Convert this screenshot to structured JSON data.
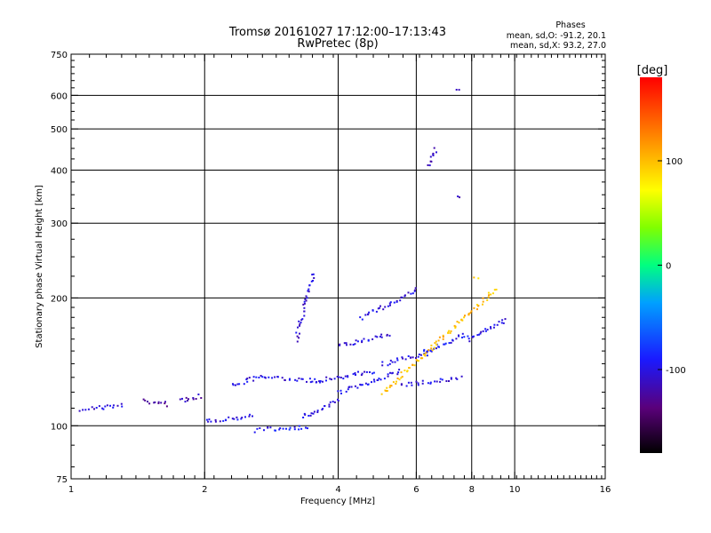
{
  "chart_data": {
    "type": "scatter",
    "title": "Tromsø 20161027 17:12:00–17:13:43",
    "subtitle": "RwPretec (8p)",
    "xlabel": "Frequency [MHz]",
    "ylabel": "Stationary phase Virtual Height [km]",
    "x_scale": "log",
    "y_scale": "log",
    "xlim": [
      1,
      16
    ],
    "ylim": [
      75,
      750
    ],
    "x_ticks": [
      1,
      2,
      4,
      6,
      8,
      10,
      16
    ],
    "y_ticks": [
      75,
      100,
      200,
      300,
      400,
      500,
      600,
      750
    ],
    "x_grid": [
      2,
      4,
      6,
      8,
      10
    ],
    "y_grid": [
      100,
      200,
      300,
      400,
      500,
      600
    ],
    "grid": true,
    "stats": {
      "heading": "Phases",
      "line1": "mean, sd,O:  -91.2, 20.1",
      "line2": "mean, sd,X:  93.2, 27.0"
    },
    "colorbar": {
      "label": "[deg]",
      "range": [
        -180,
        180
      ],
      "ticks": [
        100,
        0,
        -100
      ],
      "tick_labels": [
        "100",
        "0",
        "-100"
      ],
      "colormap": "rainbow"
    },
    "traces": [
      {
        "f": [
          1.05,
          1.3
        ],
        "h": [
          110,
          112
        ],
        "phase": -105
      },
      {
        "f": [
          1.45,
          1.65
        ],
        "h": [
          115,
          113
        ],
        "phase": -125
      },
      {
        "f": [
          1.75,
          1.95
        ],
        "h": [
          115,
          118
        ],
        "phase": -115
      },
      {
        "f": [
          2.0,
          2.55
        ],
        "h": [
          103,
          106
        ],
        "phase": -100
      },
      {
        "f": [
          2.3,
          2.7
        ],
        "h": [
          125,
          132
        ],
        "phase": -100
      },
      {
        "f": [
          2.6,
          3.4
        ],
        "h": [
          98,
          100
        ],
        "phase": -95
      },
      {
        "f": [
          2.7,
          3.6
        ],
        "h": [
          130,
          128
        ],
        "phase": -100
      },
      {
        "f": [
          3.2,
          3.5
        ],
        "h": [
          160,
          230
        ],
        "phase": -105
      },
      {
        "f": [
          3.3,
          4.0
        ],
        "h": [
          105,
          115
        ],
        "phase": -100
      },
      {
        "f": [
          3.5,
          4.8
        ],
        "h": [
          128,
          135
        ],
        "phase": -100
      },
      {
        "f": [
          4.0,
          5.2
        ],
        "h": [
          155,
          165
        ],
        "phase": -100
      },
      {
        "f": [
          4.0,
          5.5
        ],
        "h": [
          120,
          135
        ],
        "phase": -100
      },
      {
        "f": [
          4.5,
          6.0
        ],
        "h": [
          180,
          210
        ],
        "phase": -100
      },
      {
        "f": [
          5.0,
          6.5
        ],
        "h": [
          140,
          150
        ],
        "phase": -100
      },
      {
        "f": [
          5.5,
          7.5
        ],
        "h": [
          125,
          130
        ],
        "phase": -100
      },
      {
        "f": [
          6.2,
          7.8
        ],
        "h": [
          150,
          165
        ],
        "phase": -95
      },
      {
        "f": [
          7.8,
          9.5
        ],
        "h": [
          160,
          178
        ],
        "phase": -100
      },
      {
        "f": [
          5.0,
          9.0
        ],
        "h": [
          120,
          210
        ],
        "phase": 100
      },
      {
        "f": [
          6.4,
          6.6
        ],
        "h": [
          410,
          450
        ],
        "phase": -110
      },
      {
        "f": [
          7.4,
          7.5
        ],
        "h": [
          620,
          620
        ],
        "phase": -120
      },
      {
        "f": [
          7.4,
          7.5
        ],
        "h": [
          345,
          345
        ],
        "phase": -115
      },
      {
        "f": [
          8.1,
          8.2
        ],
        "h": [
          225,
          225
        ],
        "phase": 95
      }
    ]
  }
}
